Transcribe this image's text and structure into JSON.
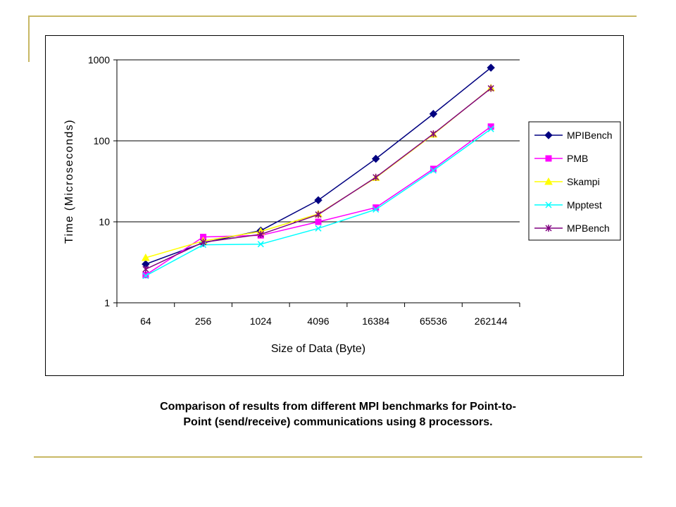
{
  "chart_data": {
    "type": "line",
    "title": "",
    "xlabel": "Size of Data (Byte)",
    "ylabel": "Time (Microseconds)",
    "y_scale": "log",
    "ylim": [
      1,
      1000
    ],
    "y_ticks": [
      "1",
      "10",
      "100",
      "1000"
    ],
    "categories": [
      "64",
      "256",
      "1024",
      "4096",
      "16384",
      "65536",
      "262144"
    ],
    "grid": "horizontal major gridlines",
    "legend_position": "right",
    "series": [
      {
        "name": "MPIBench",
        "color": "#000080",
        "marker": "diamond",
        "values": [
          3.0,
          5.5,
          7.8,
          18.5,
          60,
          215,
          800
        ]
      },
      {
        "name": "PMB",
        "color": "#ff00ff",
        "marker": "square",
        "values": [
          2.2,
          6.5,
          6.8,
          10.0,
          15.0,
          45,
          150
        ]
      },
      {
        "name": "Skampi",
        "color": "#ffff00",
        "marker": "triangle",
        "values": [
          3.6,
          5.8,
          7.6,
          12.5,
          35,
          120,
          450
        ]
      },
      {
        "name": "Mpptest",
        "color": "#00ffff",
        "marker": "x",
        "values": [
          2.15,
          5.2,
          5.3,
          8.3,
          14.2,
          43,
          140
        ]
      },
      {
        "name": "MPBench",
        "color": "#800080",
        "marker": "star",
        "values": [
          2.6,
          5.6,
          7.0,
          12.3,
          35.5,
          122,
          445
        ]
      }
    ]
  },
  "caption": {
    "line1": "Comparison of results from different MPI benchmarks for Point-to-",
    "line2": "Point (send/receive) communications using 8 processors."
  },
  "colors": {
    "frame_border": "#000000",
    "decoration": "#c8b864"
  }
}
